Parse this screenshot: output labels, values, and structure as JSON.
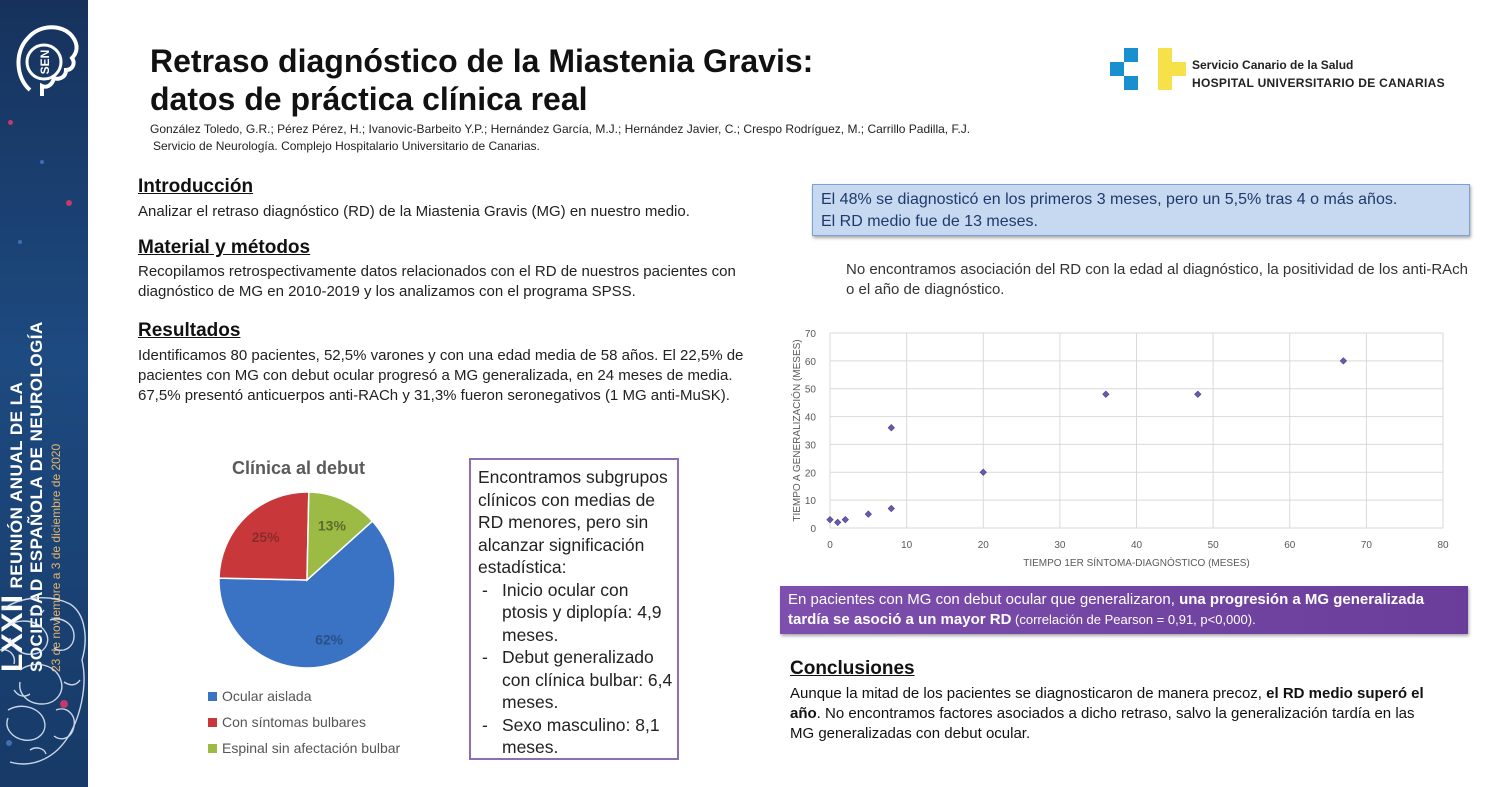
{
  "sidebar": {
    "logo_text": "SEN",
    "line1_big": "LXXII",
    "line1_rest": "REUNIÓN ANUAL DE LA",
    "line2": "SOCIEDAD ESPAÑOLA DE NEUROLOGÍA",
    "line3": "23 de noviembre a 3 de diciembre de 2020"
  },
  "header": {
    "title_line1": "Retraso diagnóstico de la Miastenia Gravis:",
    "title_line2": "datos de práctica clínica real",
    "authors": "González Toledo, G.R.; Pérez Pérez, H.; Ivanovic-Barbeito Y.P.; Hernández García, M.J.; Hernández Javier, C.; Crespo Rodríguez, M.; Carrillo Padilla, F.J.",
    "affiliation": "Servicio de Neurología. Complejo Hospitalario Universitario de Canarias."
  },
  "hospital": {
    "line1": "Servicio Canario de la Salud",
    "line2": "HOSPITAL UNIVERSITARIO DE CANARIAS",
    "colors": [
      "#1a8fd0",
      "#f6e14b"
    ]
  },
  "sections": {
    "intro_head": "Introducción",
    "intro_body": "Analizar el retraso diagnóstico (RD) de la Miastenia Gravis (MG) en nuestro medio.",
    "methods_head": "Material y métodos",
    "methods_body": "Recopilamos retrospectivamente datos relacionados con el RD de nuestros pacientes con diagnóstico de MG en 2010-2019 y los analizamos con el programa SPSS.",
    "results_head": "Resultados",
    "results_body": "Identificamos 80 pacientes, 52,5% varones y con una edad media de 58 años. El 22,5% de pacientes con MG con debut ocular progresó a MG generalizada, en 24 meses de media. 67,5% presentó anticuerpos anti-RACh y 31,3% fueron seronegativos (1 MG anti-MuSK)."
  },
  "subgroups": {
    "intro": "Encontramos subgrupos clínicos con medias de RD menores, pero sin alcanzar significación estadística:",
    "items": [
      "Inicio ocular con ptosis y diplopía: 4,9 meses.",
      "Debut generalizado con clínica bulbar: 6,4 meses.",
      "Sexo masculino: 8,1 meses."
    ]
  },
  "callouts": {
    "blue_line1": "El 48% se diagnosticó en los primeros 3 meses, pero un 5,5% tras 4 o más años.",
    "blue_line2": "El RD medio fue de 13 meses.",
    "no_assoc": "No encontramos asociación del RD con la edad al diagnóstico, la positividad de los anti-RAch o el año de diagnóstico.",
    "purple_a": "En pacientes con MG con debut ocular que generalizaron, ",
    "purple_b": "una progresión a MG generalizada tardía se asoció a un mayor RD",
    "purple_c": " (correlación de Pearson = 0,91, p<0,000)."
  },
  "conclusions": {
    "head": "Conclusiones",
    "a": "Aunque la mitad de los pacientes se diagnosticaron de manera precoz, ",
    "b": "el RD medio superó el año",
    "c": ". No encontramos factores asociados a dicho retraso, salvo la generalización tardía en las MG generalizadas con debut ocular."
  },
  "chart_data": [
    {
      "type": "pie",
      "title": "Clínica al debut",
      "categories": [
        "Ocular aislada",
        "Con síntomas bulbares",
        "Espinal sin afectación bulbar"
      ],
      "values": [
        62,
        25,
        13
      ],
      "labels": [
        "62%",
        "25%",
        "13%"
      ],
      "colors": [
        "#3b73c4",
        "#c8383a",
        "#9bbb44"
      ],
      "legend": "bottom"
    },
    {
      "type": "scatter",
      "title": "",
      "xlabel": "TIEMPO 1ER SÍNTOMA-DIAGNÓSTICO (MESES)",
      "ylabel": "TIEMPO A GENERALIZACIÓN (MESES)",
      "xlim": [
        0,
        80
      ],
      "ylim": [
        0,
        70
      ],
      "xticks": [
        0,
        10,
        20,
        30,
        40,
        50,
        60,
        70,
        80
      ],
      "yticks": [
        0,
        10,
        20,
        30,
        40,
        50,
        60,
        70
      ],
      "grid": true,
      "marker_color": "#6b58b0",
      "points": [
        {
          "x": 0,
          "y": 3
        },
        {
          "x": 1,
          "y": 2
        },
        {
          "x": 2,
          "y": 3
        },
        {
          "x": 5,
          "y": 5
        },
        {
          "x": 8,
          "y": 7
        },
        {
          "x": 8,
          "y": 36
        },
        {
          "x": 20,
          "y": 20
        },
        {
          "x": 36,
          "y": 48
        },
        {
          "x": 48,
          "y": 48
        },
        {
          "x": 67,
          "y": 60
        }
      ]
    }
  ]
}
